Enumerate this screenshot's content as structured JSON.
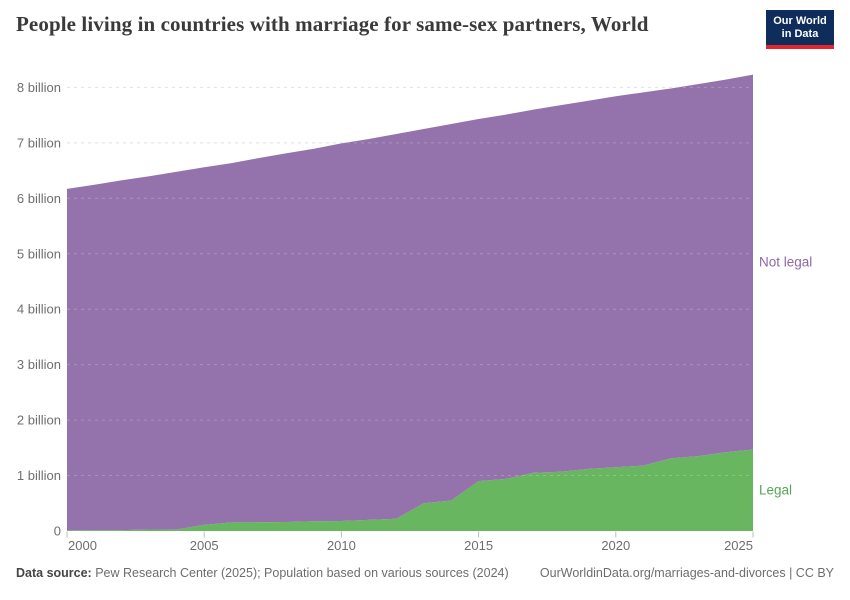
{
  "header": {
    "title": "People living in countries with marriage for same-sex partners, World",
    "logo": {
      "line1": "Our World",
      "line2": "in Data",
      "bg_color": "#0e2d5b",
      "accent_color": "#e0262e"
    }
  },
  "chart_data": {
    "type": "area",
    "stacked": true,
    "title": "People living in countries with marriage for same-sex partners, World",
    "unit": "people",
    "grid": "dashed horizontal",
    "legend_position": "right-edge entity labels",
    "x": [
      2000,
      2001,
      2002,
      2003,
      2004,
      2005,
      2006,
      2007,
      2008,
      2009,
      2010,
      2011,
      2012,
      2013,
      2014,
      2015,
      2016,
      2017,
      2018,
      2019,
      2020,
      2021,
      2022,
      2023,
      2024,
      2025
    ],
    "series": [
      {
        "name": "Legal",
        "color": "#68b660",
        "label_color": "#55a555",
        "values_billion": [
          0.01,
          0.016,
          0.016,
          0.027,
          0.028,
          0.11,
          0.155,
          0.157,
          0.163,
          0.175,
          0.18,
          0.2,
          0.22,
          0.5,
          0.55,
          0.9,
          0.94,
          1.05,
          1.07,
          1.12,
          1.15,
          1.18,
          1.31,
          1.35,
          1.42,
          1.47
        ]
      },
      {
        "name": "Not legal",
        "color": "#9473ac",
        "label_color": "#8c68a8",
        "values_billion": [
          6.16,
          6.23,
          6.31,
          6.37,
          6.45,
          6.45,
          6.48,
          6.57,
          6.65,
          6.72,
          6.81,
          6.87,
          6.94,
          6.75,
          6.79,
          6.53,
          6.57,
          6.55,
          6.61,
          6.64,
          6.69,
          6.73,
          6.67,
          6.71,
          6.72,
          6.76
        ]
      }
    ],
    "y_ticks": [
      {
        "value": 0,
        "label": "0"
      },
      {
        "value": 1,
        "label": "1 billion"
      },
      {
        "value": 2,
        "label": "2 billion"
      },
      {
        "value": 3,
        "label": "3 billion"
      },
      {
        "value": 4,
        "label": "4 billion"
      },
      {
        "value": 5,
        "label": "5 billion"
      },
      {
        "value": 6,
        "label": "6 billion"
      },
      {
        "value": 7,
        "label": "7 billion"
      },
      {
        "value": 8,
        "label": "8 billion"
      }
    ],
    "x_ticks": [
      2000,
      2005,
      2010,
      2015,
      2020,
      2025
    ],
    "xlim": [
      2000,
      2025
    ],
    "ylim_billion": [
      0,
      8.5
    ]
  },
  "footer": {
    "source_label": "Data source:",
    "source_text": "Pew Research Center (2025); Population based on various sources (2024)",
    "link_text": "OurWorldinData.org/marriages-and-divorces | CC BY"
  }
}
